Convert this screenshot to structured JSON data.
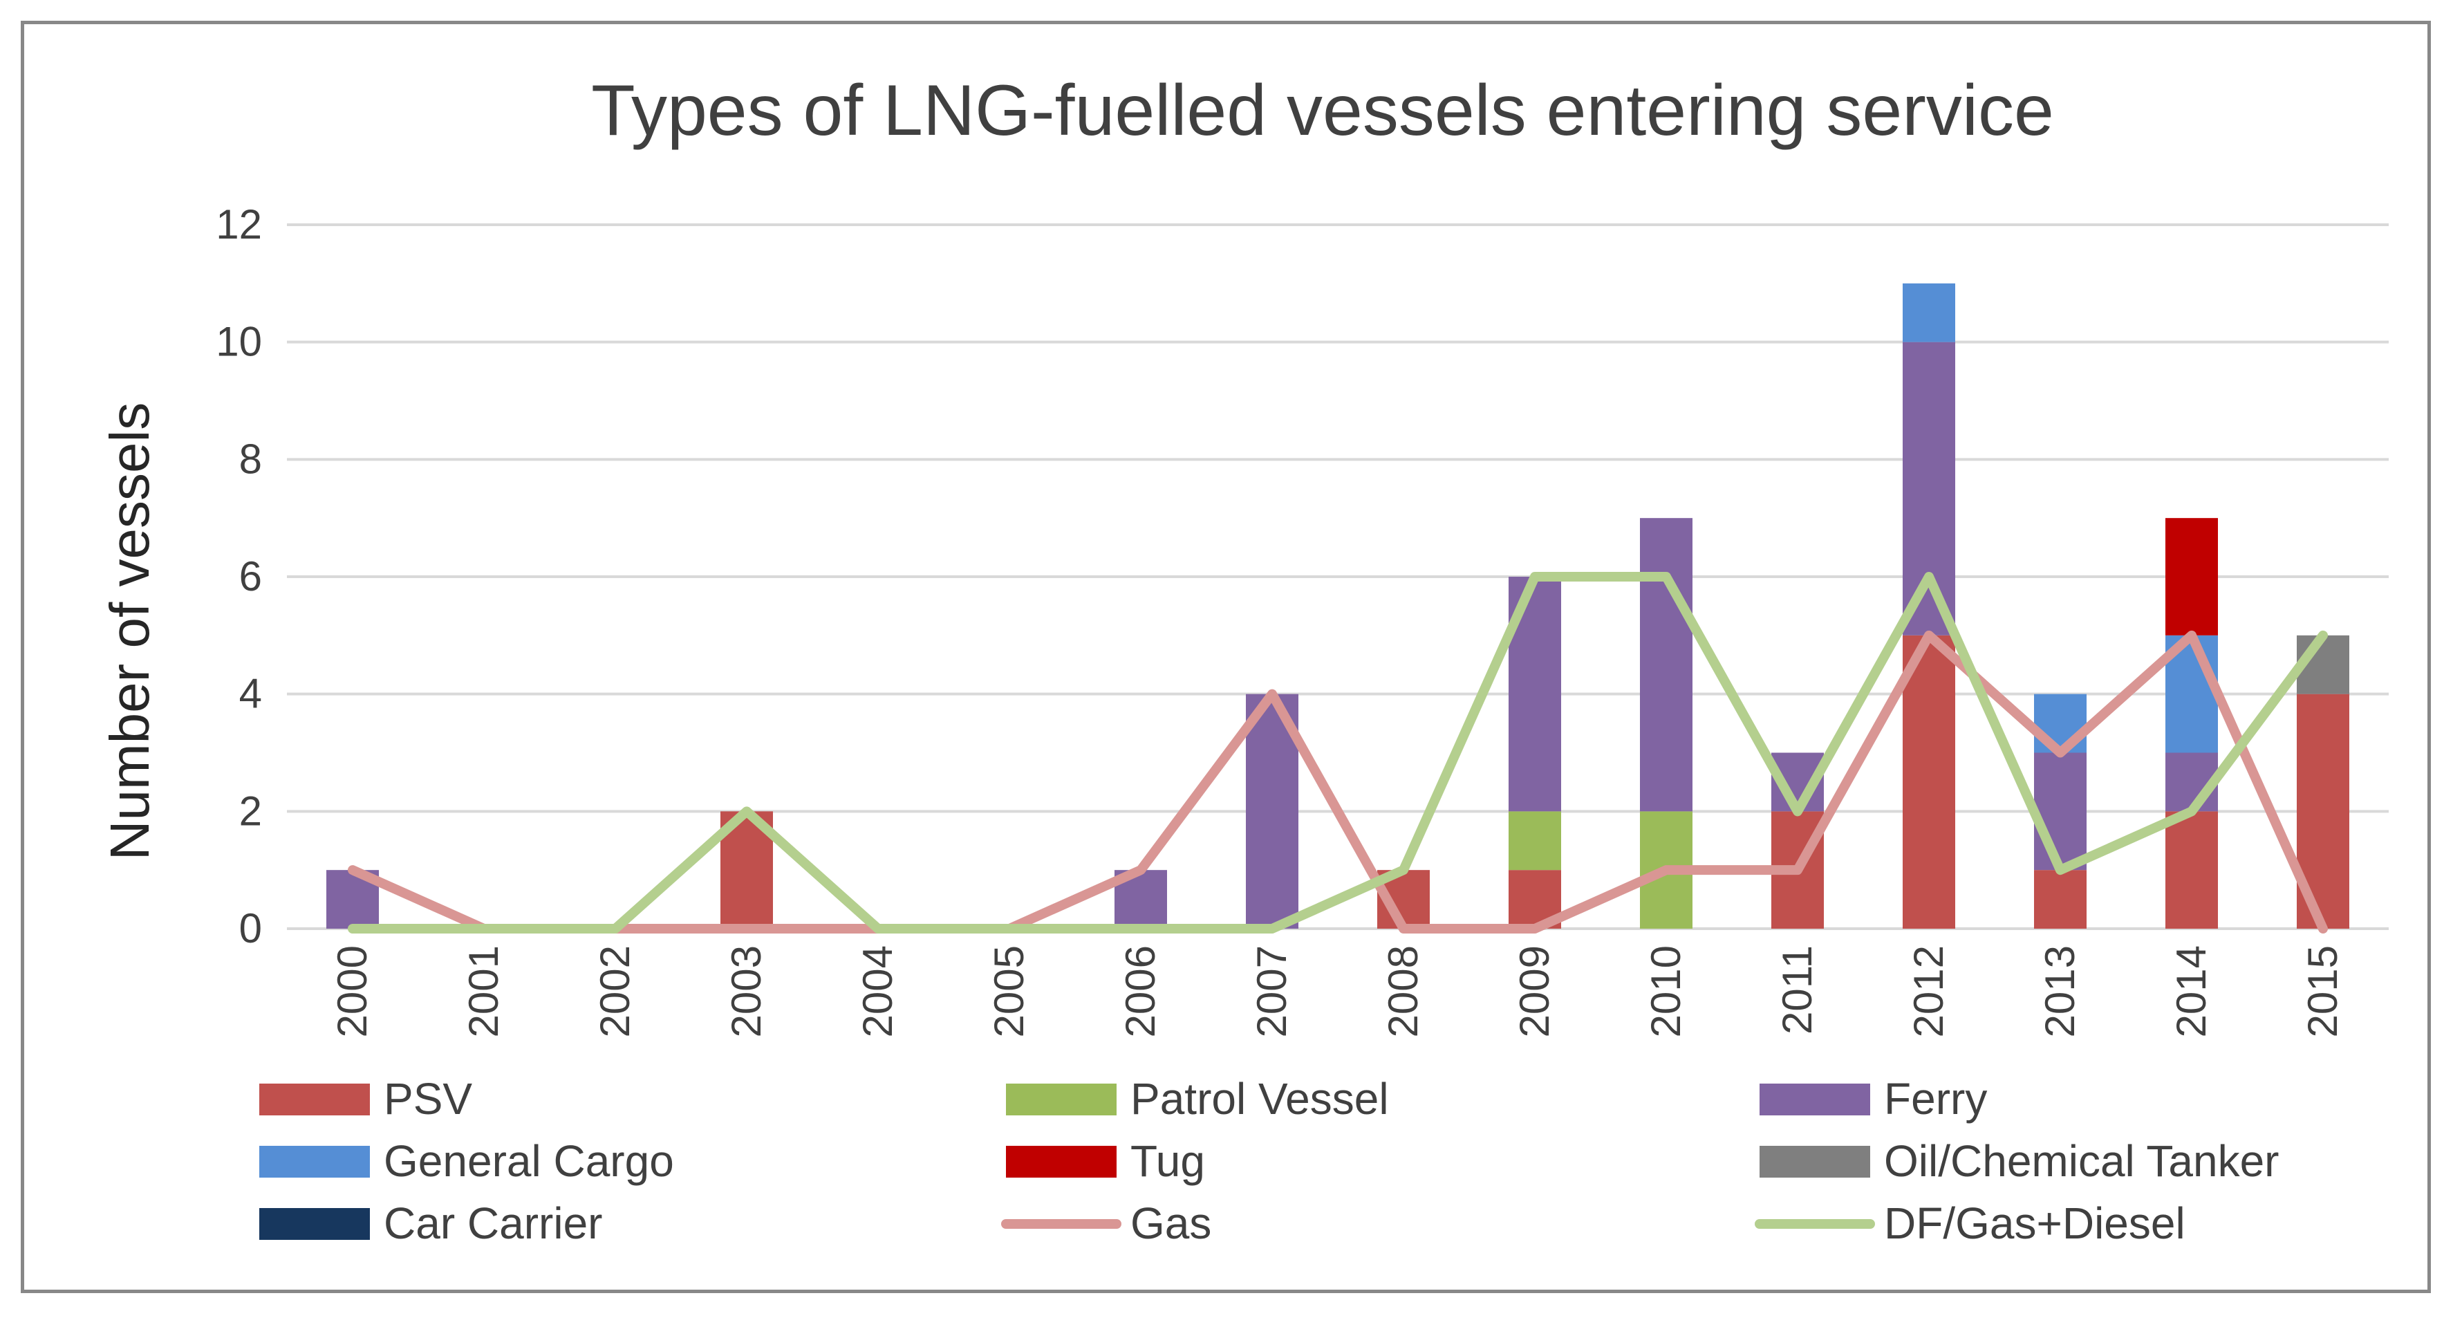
{
  "chart_data": {
    "type": "bar",
    "stacked": true,
    "title": "Types of LNG-fuelled vessels entering service",
    "xlabel": "",
    "ylabel": "Number of vessels",
    "ylim": [
      0,
      12
    ],
    "yticks": [
      0,
      2,
      4,
      6,
      8,
      10,
      12
    ],
    "grid": true,
    "legend_position": "bottom",
    "categories": [
      "2000",
      "2001",
      "2002",
      "2003",
      "2004",
      "2005",
      "2006",
      "2007",
      "2008",
      "2009",
      "2010",
      "2011",
      "2012",
      "2013",
      "2014",
      "2015"
    ],
    "series": [
      {
        "name": "PSV",
        "kind": "bar",
        "color": "#C0504D",
        "values": [
          0,
          0,
          0,
          2,
          0,
          0,
          0,
          0,
          1,
          1,
          0,
          2,
          5,
          1,
          2,
          4
        ]
      },
      {
        "name": "Patrol Vessel",
        "kind": "bar",
        "color": "#9BBB59",
        "values": [
          0,
          0,
          0,
          0,
          0,
          0,
          0,
          0,
          0,
          1,
          2,
          0,
          0,
          0,
          0,
          0
        ]
      },
      {
        "name": "Ferry",
        "kind": "bar",
        "color": "#8064A2",
        "values": [
          1,
          0,
          0,
          0,
          0,
          0,
          1,
          4,
          0,
          4,
          5,
          1,
          5,
          2,
          1,
          0
        ]
      },
      {
        "name": "General Cargo",
        "kind": "bar",
        "color": "#558ED5",
        "values": [
          0,
          0,
          0,
          0,
          0,
          0,
          0,
          0,
          0,
          0,
          0,
          0,
          1,
          1,
          2,
          0
        ]
      },
      {
        "name": "Tug",
        "kind": "bar",
        "color": "#C00000",
        "values": [
          0,
          0,
          0,
          0,
          0,
          0,
          0,
          0,
          0,
          0,
          0,
          0,
          0,
          0,
          2,
          0
        ]
      },
      {
        "name": "Oil/Chemical Tanker",
        "kind": "bar",
        "color": "#7F7F7F",
        "values": [
          0,
          0,
          0,
          0,
          0,
          0,
          0,
          0,
          0,
          0,
          0,
          0,
          0,
          0,
          0,
          1
        ]
      },
      {
        "name": "Car Carrier",
        "kind": "bar",
        "color": "#17375E",
        "values": [
          0,
          0,
          0,
          0,
          0,
          0,
          0,
          0,
          0,
          0,
          0,
          0,
          0,
          0,
          0,
          0
        ]
      },
      {
        "name": "Gas",
        "kind": "line",
        "color": "#D99694",
        "values": [
          1,
          0,
          0,
          0,
          0,
          0,
          1,
          4,
          0,
          0,
          1,
          1,
          5,
          3,
          5,
          0
        ]
      },
      {
        "name": "DF/Gas+Diesel",
        "kind": "line",
        "color": "#B4CF8E",
        "values": [
          0,
          0,
          0,
          2,
          0,
          0,
          0,
          0,
          1,
          6,
          6,
          2,
          6,
          1,
          2,
          5
        ]
      }
    ]
  }
}
